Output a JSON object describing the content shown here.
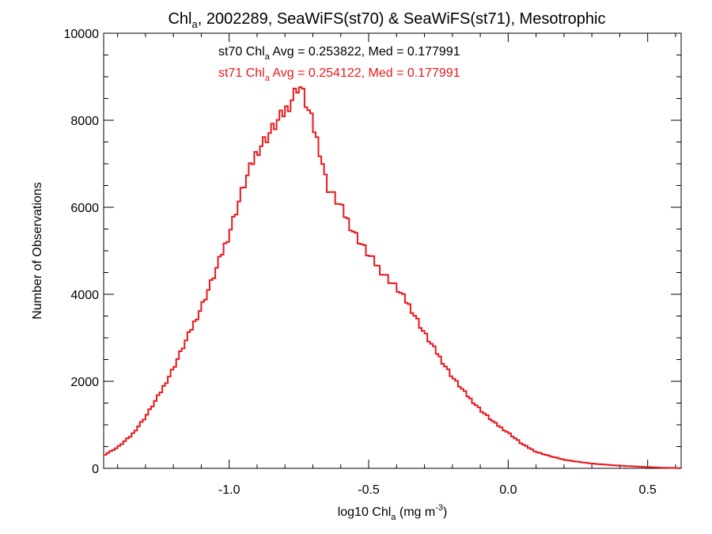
{
  "chart_data": {
    "type": "line",
    "title": {
      "pre": "Chl",
      "sub": "a",
      "post": ", 2002289, SeaWiFS(st70) & SeaWiFS(st71), Mesotrophic"
    },
    "xlabel": {
      "pre": "log10 Chl",
      "sub": "a",
      "mid": " (mg m",
      "sup": "-3",
      "post": ")"
    },
    "ylabel": "Number of Observations",
    "xlim": [
      -1.45,
      0.62
    ],
    "ylim": [
      0,
      10000
    ],
    "x_ticks": [
      -1.0,
      -0.5,
      0.0,
      0.5
    ],
    "x_tick_labels": [
      "-1.0",
      "-0.5",
      "0.0",
      "0.5"
    ],
    "y_ticks": [
      0,
      2000,
      4000,
      6000,
      8000,
      10000
    ],
    "y_tick_labels": [
      "0",
      "2000",
      "4000",
      "6000",
      "8000",
      "10000"
    ],
    "grid": false,
    "colors": {
      "st70": "#000000",
      "st71": "#e8181d"
    },
    "annotations": [
      {
        "id": "st70",
        "pre": "st70 Chl",
        "sub": "a",
        "post": " Avg = 0.253822, Med = 0.177991",
        "color": "#000000"
      },
      {
        "id": "st71",
        "pre": "st71 Chl",
        "sub": "a",
        "post": " Avg = 0.254122, Med = 0.177991",
        "color": "#e8181d"
      }
    ],
    "series": [
      {
        "id": "st71",
        "color": "#e8181d",
        "style": "step",
        "points": [
          [
            -1.45,
            300
          ],
          [
            -1.4,
            480
          ],
          [
            -1.35,
            760
          ],
          [
            -1.3,
            1180
          ],
          [
            -1.25,
            1700
          ],
          [
            -1.2,
            2300
          ],
          [
            -1.15,
            3000
          ],
          [
            -1.1,
            3700
          ],
          [
            -1.05,
            4500
          ],
          [
            -1.0,
            5400
          ],
          [
            -0.95,
            6450
          ],
          [
            -0.9,
            7300
          ],
          [
            -0.85,
            7750
          ],
          [
            -0.8,
            8200
          ],
          [
            -0.77,
            8550
          ],
          [
            -0.75,
            8850
          ],
          [
            -0.73,
            8500
          ],
          [
            -0.7,
            7900
          ],
          [
            -0.67,
            7200
          ],
          [
            -0.65,
            6500
          ],
          [
            -0.6,
            6000
          ],
          [
            -0.55,
            5400
          ],
          [
            -0.5,
            4900
          ],
          [
            -0.45,
            4500
          ],
          [
            -0.4,
            4150
          ],
          [
            -0.35,
            3700
          ],
          [
            -0.3,
            3100
          ],
          [
            -0.25,
            2600
          ],
          [
            -0.2,
            2100
          ],
          [
            -0.15,
            1700
          ],
          [
            -0.1,
            1350
          ],
          [
            -0.05,
            1050
          ],
          [
            0.0,
            820
          ],
          [
            0.05,
            560
          ],
          [
            0.1,
            380
          ],
          [
            0.15,
            280
          ],
          [
            0.2,
            200
          ],
          [
            0.25,
            150
          ],
          [
            0.3,
            110
          ],
          [
            0.4,
            60
          ],
          [
            0.5,
            30
          ],
          [
            0.55,
            15
          ],
          [
            0.62,
            5
          ]
        ]
      }
    ]
  }
}
